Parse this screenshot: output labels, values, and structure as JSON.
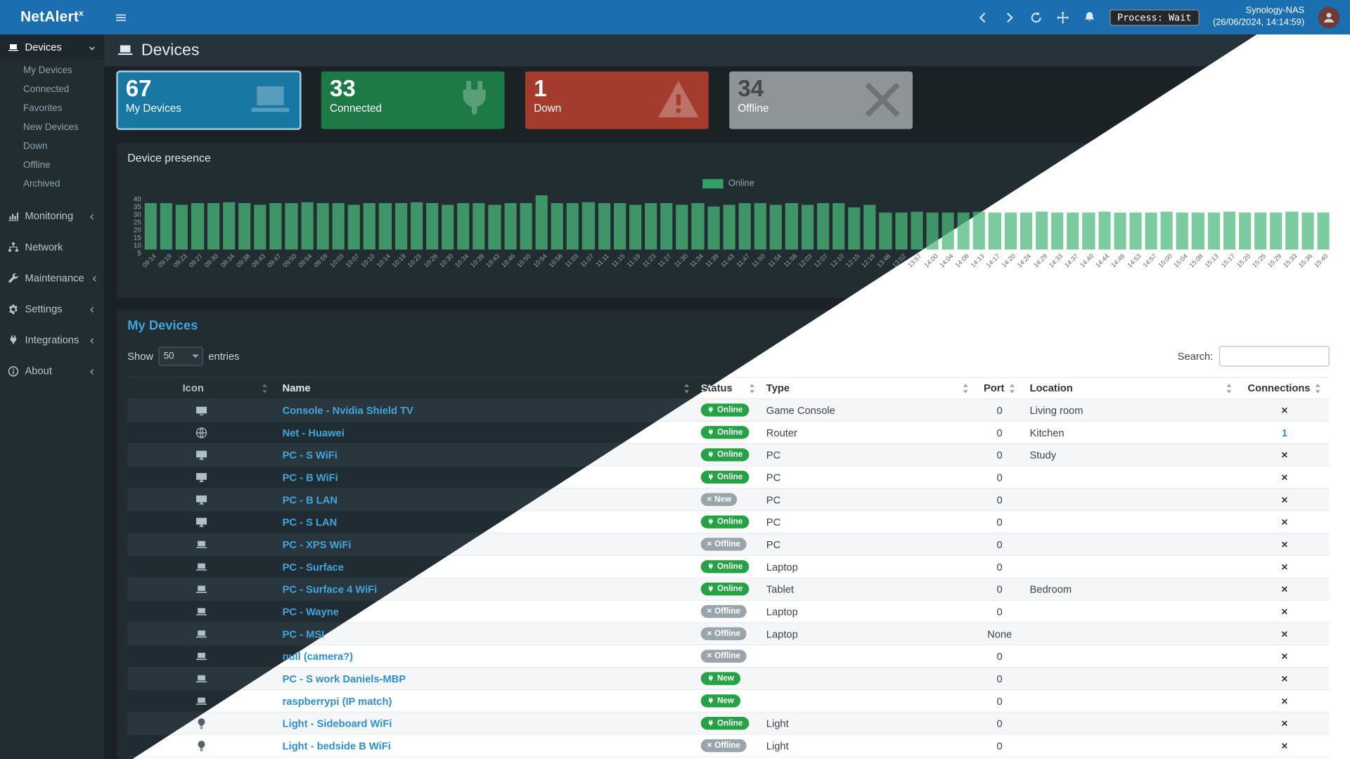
{
  "brand": {
    "text": "NetAlert",
    "sup": "x"
  },
  "navbar": {
    "process_status": "Process: Wait",
    "host_name": "Synology-NAS",
    "host_time": "(26/06/2024, 14:14:59)"
  },
  "sidebar": {
    "devices_label": "Devices",
    "devices_sub": [
      "My Devices",
      "Connected",
      "Favorites",
      "New Devices",
      "Down",
      "Offline",
      "Archived"
    ],
    "monitoring": "Monitoring",
    "network": "Network",
    "maintenance": "Maintenance",
    "settings": "Settings",
    "integrations": "Integrations",
    "about": "About"
  },
  "page_header": {
    "title": "Devices"
  },
  "stat_cards": [
    {
      "value": "67",
      "label": "My Devices",
      "color": "#1878a3",
      "icon": "laptop-icon",
      "card_class": "selected"
    },
    {
      "value": "33",
      "label": "Connected",
      "color": "#1d7a46",
      "icon": "plug-icon",
      "card_class": ""
    },
    {
      "value": "1",
      "label": "Down",
      "color": "#a43c2e",
      "icon": "warning-icon",
      "card_class": ""
    },
    {
      "value": "34",
      "label": "Offline",
      "color": "#8f9496",
      "icon": "x-icon",
      "card_class": "muted"
    }
  ],
  "chart_data": {
    "type": "bar",
    "title": "Device presence",
    "legend": [
      "Online"
    ],
    "legend_position": "top-center",
    "series_color": "#3f9468",
    "grid": false,
    "xlabel": "",
    "ylabel": "",
    "ylim": [
      0,
      40
    ],
    "yticks": [
      "40",
      "35",
      "30",
      "25",
      "20",
      "15",
      "10",
      "5"
    ],
    "categories": [
      "09:14",
      "09:19",
      "09:23",
      "09:27",
      "09:30",
      "09:34",
      "09:38",
      "09:43",
      "09:47",
      "09:50",
      "09:54",
      "09:59",
      "10:03",
      "10:07",
      "10:10",
      "10:14",
      "10:19",
      "10:23",
      "10:26",
      "10:30",
      "10:34",
      "10:39",
      "10:43",
      "10:46",
      "10:50",
      "10:54",
      "10:58",
      "11:03",
      "11:07",
      "11:11",
      "11:15",
      "11:19",
      "11:23",
      "11:27",
      "11:30",
      "11:34",
      "11:39",
      "11:43",
      "11:47",
      "11:50",
      "11:54",
      "11:58",
      "12:03",
      "12:07",
      "12:10",
      "12:15",
      "12:19",
      "13:48",
      "13:52",
      "13:57",
      "14:00",
      "14:04",
      "14:08",
      "14:13",
      "14:17",
      "14:20",
      "14:24",
      "14:29",
      "14:33",
      "14:37",
      "14:40",
      "14:44",
      "14:48",
      "14:53",
      "14:57",
      "15:00",
      "15:04",
      "15:08",
      "15:13",
      "15:17",
      "15:20",
      "15:25",
      "15:29",
      "15:33",
      "15:36",
      "15:40"
    ],
    "values": [
      34,
      34,
      33,
      34,
      34,
      35,
      34,
      33,
      34,
      34,
      35,
      34,
      34,
      33,
      34,
      34,
      34,
      35,
      34,
      33,
      34,
      34,
      33,
      34,
      34,
      40,
      34,
      34,
      35,
      34,
      34,
      33,
      34,
      34,
      33,
      34,
      32,
      33,
      34,
      34,
      33,
      34,
      33,
      34,
      34,
      31,
      33,
      27,
      27,
      28,
      27,
      27,
      27,
      28,
      27,
      27,
      27,
      28,
      27,
      27,
      27,
      28,
      27,
      27,
      27,
      28,
      27,
      27,
      27,
      28,
      27,
      27,
      27,
      28,
      27,
      27
    ]
  },
  "devices_table": {
    "tab_title": "My Devices",
    "show_label": "Show",
    "entries_value": "50",
    "entries_label": "entries",
    "search_label": "Search:",
    "columns": [
      "Icon",
      "Name",
      "Status",
      "Type",
      "Port",
      "Location",
      "Connections"
    ],
    "rows": [
      {
        "icon": "tv-icon",
        "name": "Console - Nvidia Shield TV",
        "status": "Online",
        "status_class": "b-green",
        "type": "Game Console",
        "port": "0",
        "location": "Living room",
        "conn": "×",
        "conn_class": "conn-x"
      },
      {
        "icon": "globe-icon",
        "name": "Net - Huawei",
        "status": "Online",
        "status_class": "b-green",
        "type": "Router",
        "port": "0",
        "location": "Kitchen",
        "conn": "1",
        "conn_class": "conn-link"
      },
      {
        "icon": "desktop-icon",
        "name": "PC - S WiFi",
        "status": "Online",
        "status_class": "b-green",
        "type": "PC",
        "port": "0",
        "location": "Study",
        "conn": "×",
        "conn_class": "conn-x"
      },
      {
        "icon": "desktop-icon",
        "name": "PC - B WiFi",
        "status": "Online",
        "status_class": "b-green",
        "type": "PC",
        "port": "0",
        "location": "",
        "conn": "×",
        "conn_class": "conn-x"
      },
      {
        "icon": "desktop-icon",
        "name": "PC - B LAN",
        "status": "New",
        "status_class": "b-gray",
        "type": "PC",
        "port": "0",
        "location": "",
        "conn": "×",
        "conn_class": "conn-x"
      },
      {
        "icon": "desktop-icon",
        "name": "PC - S LAN",
        "status": "Online",
        "status_class": "b-green",
        "type": "PC",
        "port": "0",
        "location": "",
        "conn": "×",
        "conn_class": "conn-x"
      },
      {
        "icon": "laptop-icon",
        "name": "PC - XPS WiFi",
        "status": "Offline",
        "status_class": "b-gray",
        "type": "PC",
        "port": "0",
        "location": "",
        "conn": "×",
        "conn_class": "conn-x"
      },
      {
        "icon": "laptop-icon",
        "name": "PC - Surface",
        "status": "Online",
        "status_class": "b-green",
        "type": "Laptop",
        "port": "0",
        "location": "",
        "conn": "×",
        "conn_class": "conn-x"
      },
      {
        "icon": "laptop-icon",
        "name": "PC - Surface 4 WiFi",
        "status": "Online",
        "status_class": "b-green",
        "type": "Tablet",
        "port": "0",
        "location": "Bedroom",
        "conn": "×",
        "conn_class": "conn-x"
      },
      {
        "icon": "laptop-icon",
        "name": "PC - Wayne",
        "status": "Offline",
        "status_class": "b-gray",
        "type": "Laptop",
        "port": "0",
        "location": "",
        "conn": "×",
        "conn_class": "conn-x"
      },
      {
        "icon": "laptop-icon",
        "name": "PC - MSI",
        "status": "Offline",
        "status_class": "b-gray",
        "type": "Laptop",
        "port": "None",
        "location": "",
        "conn": "×",
        "conn_class": "conn-x"
      },
      {
        "icon": "laptop-icon",
        "name": "null (camera?)",
        "status": "Offline",
        "status_class": "b-gray",
        "type": "",
        "port": "0",
        "location": "",
        "conn": "×",
        "conn_class": "conn-x"
      },
      {
        "icon": "laptop-icon",
        "name": "PC - S work Daniels-MBP",
        "status": "New",
        "status_class": "b-green",
        "type": "",
        "port": "0",
        "location": "",
        "conn": "×",
        "conn_class": "conn-x"
      },
      {
        "icon": "laptop-icon",
        "name": "raspberrypi (IP match)",
        "status": "New",
        "status_class": "b-green",
        "type": "",
        "port": "0",
        "location": "",
        "conn": "×",
        "conn_class": "conn-x"
      },
      {
        "icon": "bulb-icon",
        "name": "Light - Sideboard WiFi",
        "status": "Online",
        "status_class": "b-green",
        "type": "Light",
        "port": "0",
        "location": "",
        "conn": "×",
        "conn_class": "conn-x"
      },
      {
        "icon": "bulb-icon",
        "name": "Light - bedside B WiFi",
        "status": "Offline",
        "status_class": "b-gray",
        "type": "Light",
        "port": "0",
        "location": "",
        "conn": "×",
        "conn_class": "conn-x"
      }
    ]
  }
}
